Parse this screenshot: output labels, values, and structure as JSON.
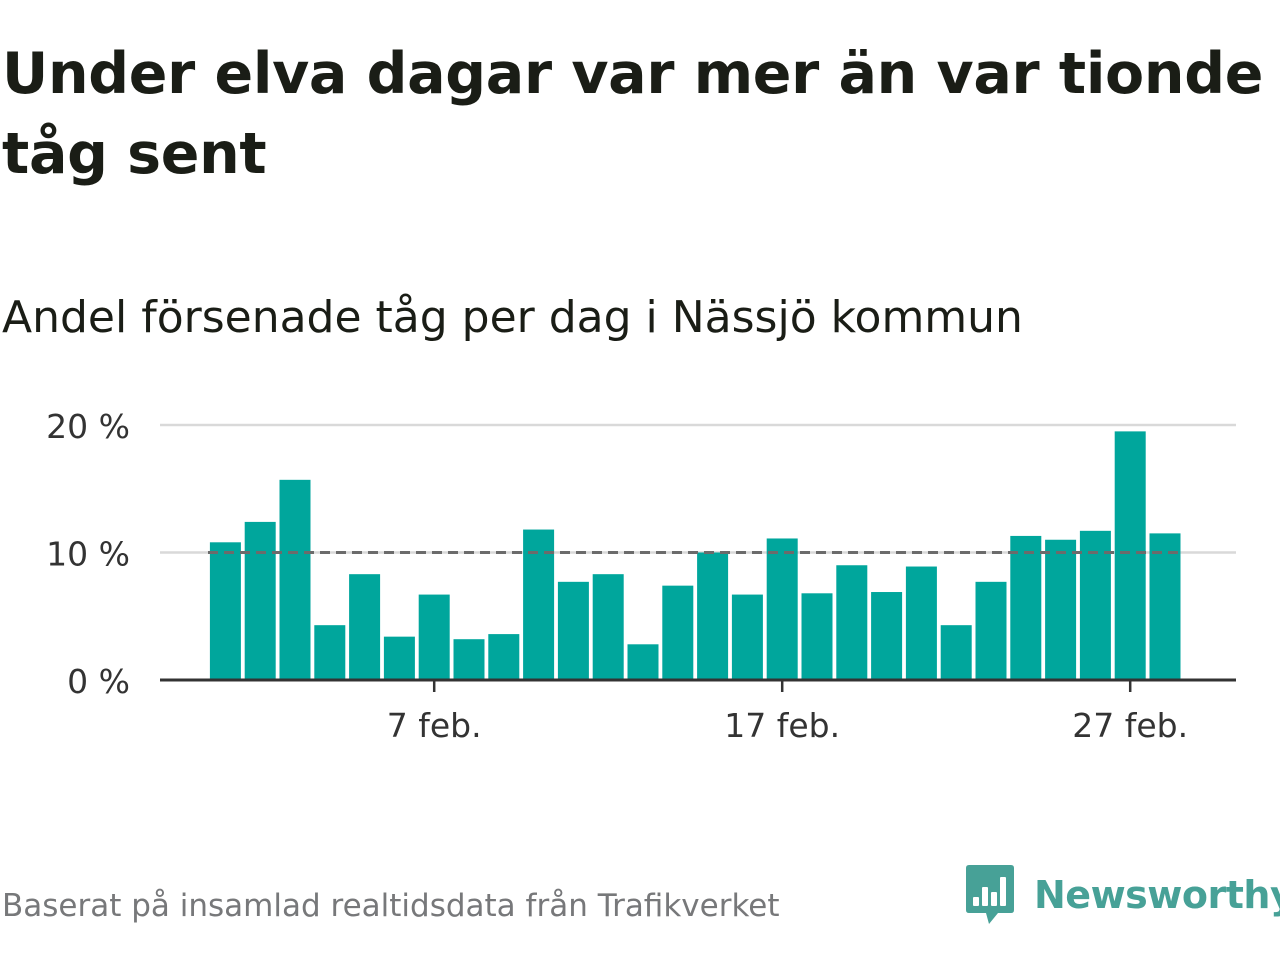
{
  "title": "Under elva dagar var mer än var tionde tåg sent",
  "subtitle": "Andel försenade tåg per dag i Nässjö kommun",
  "footer": "Baserat på insamlad realtidsdata från Trafikverket",
  "brand": {
    "name": "Newsworthy",
    "color": "#47a197"
  },
  "chart_data": {
    "type": "bar",
    "x": [
      1,
      2,
      3,
      4,
      5,
      6,
      7,
      8,
      9,
      10,
      11,
      12,
      13,
      14,
      15,
      16,
      17,
      18,
      19,
      20,
      21,
      22,
      23,
      24,
      25,
      26,
      27,
      28
    ],
    "x_unit": "feb.",
    "series": [
      {
        "values": [
          10.8,
          12.4,
          15.7,
          4.3,
          8.3,
          3.4,
          6.7,
          3.2,
          3.6,
          11.8,
          7.7,
          8.3,
          2.8,
          7.4,
          10.0,
          6.7,
          11.1,
          6.8,
          9.0,
          6.9,
          8.9,
          4.3,
          7.7,
          11.3,
          11.0,
          11.7,
          19.5,
          11.5
        ]
      }
    ],
    "reference_line": {
      "value": 10,
      "style": "dashed"
    },
    "ylim": [
      0,
      20
    ],
    "yticks": [
      0,
      10,
      20
    ],
    "ytick_labels": [
      "0 %",
      "10 %",
      "20 %"
    ],
    "xticks": [
      7,
      17,
      27
    ],
    "xtick_labels": [
      "7 feb.",
      "17 feb.",
      "27 feb."
    ],
    "grid": true,
    "colors": {
      "bar": "#00a69c",
      "grid": "#d9d9d9",
      "axis": "#333333",
      "reference": "#6b6b6b",
      "tick_text": "#333333"
    }
  }
}
